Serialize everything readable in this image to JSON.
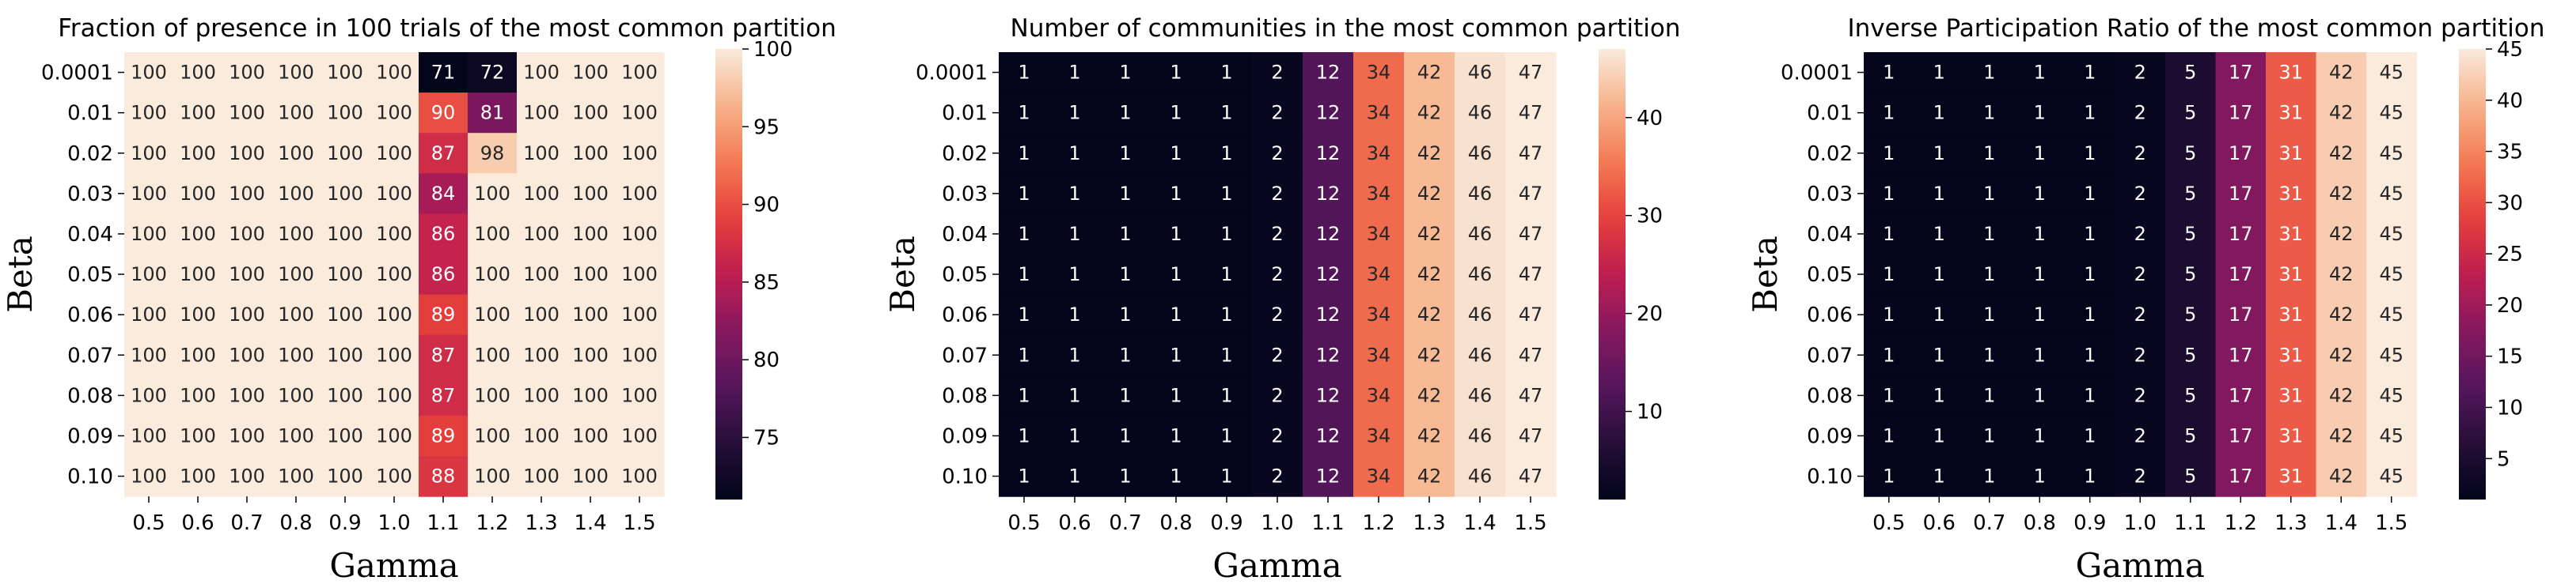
{
  "chart_data": [
    {
      "type": "heatmap",
      "title": "Fraction of presence in 100 trials of the most common partition",
      "xlabel": "Gamma",
      "ylabel": "Beta",
      "x": [
        "0.5",
        "0.6",
        "0.7",
        "0.8",
        "0.9",
        "1.0",
        "1.1",
        "1.2",
        "1.3",
        "1.4",
        "1.5"
      ],
      "y": [
        "0.0001",
        "0.01",
        "0.02",
        "0.03",
        "0.04",
        "0.05",
        "0.06",
        "0.07",
        "0.08",
        "0.09",
        "0.10"
      ],
      "values": [
        [
          100,
          100,
          100,
          100,
          100,
          100,
          71,
          72,
          100,
          100,
          100
        ],
        [
          100,
          100,
          100,
          100,
          100,
          100,
          90,
          81,
          100,
          100,
          100
        ],
        [
          100,
          100,
          100,
          100,
          100,
          100,
          87,
          98,
          100,
          100,
          100
        ],
        [
          100,
          100,
          100,
          100,
          100,
          100,
          84,
          100,
          100,
          100,
          100
        ],
        [
          100,
          100,
          100,
          100,
          100,
          100,
          86,
          100,
          100,
          100,
          100
        ],
        [
          100,
          100,
          100,
          100,
          100,
          100,
          86,
          100,
          100,
          100,
          100
        ],
        [
          100,
          100,
          100,
          100,
          100,
          100,
          89,
          100,
          100,
          100,
          100
        ],
        [
          100,
          100,
          100,
          100,
          100,
          100,
          87,
          100,
          100,
          100,
          100
        ],
        [
          100,
          100,
          100,
          100,
          100,
          100,
          87,
          100,
          100,
          100,
          100
        ],
        [
          100,
          100,
          100,
          100,
          100,
          100,
          89,
          100,
          100,
          100,
          100
        ],
        [
          100,
          100,
          100,
          100,
          100,
          100,
          88,
          100,
          100,
          100,
          100
        ]
      ],
      "colorbar": {
        "range": [
          71,
          100
        ],
        "ticks": [
          75,
          80,
          85,
          90,
          95,
          100
        ]
      },
      "colormap": "rocket"
    },
    {
      "type": "heatmap",
      "title": "Number of communities in the most common partition",
      "xlabel": "Gamma",
      "ylabel": "Beta",
      "x": [
        "0.5",
        "0.6",
        "0.7",
        "0.8",
        "0.9",
        "1.0",
        "1.1",
        "1.2",
        "1.3",
        "1.4",
        "1.5"
      ],
      "y": [
        "0.0001",
        "0.01",
        "0.02",
        "0.03",
        "0.04",
        "0.05",
        "0.06",
        "0.07",
        "0.08",
        "0.09",
        "0.10"
      ],
      "values": [
        [
          1,
          1,
          1,
          1,
          1,
          2,
          12,
          34,
          42,
          46,
          47
        ],
        [
          1,
          1,
          1,
          1,
          1,
          2,
          12,
          34,
          42,
          46,
          47
        ],
        [
          1,
          1,
          1,
          1,
          1,
          2,
          12,
          34,
          42,
          46,
          47
        ],
        [
          1,
          1,
          1,
          1,
          1,
          2,
          12,
          34,
          42,
          46,
          47
        ],
        [
          1,
          1,
          1,
          1,
          1,
          2,
          12,
          34,
          42,
          46,
          47
        ],
        [
          1,
          1,
          1,
          1,
          1,
          2,
          12,
          34,
          42,
          46,
          47
        ],
        [
          1,
          1,
          1,
          1,
          1,
          2,
          12,
          34,
          42,
          46,
          47
        ],
        [
          1,
          1,
          1,
          1,
          1,
          2,
          12,
          34,
          42,
          46,
          47
        ],
        [
          1,
          1,
          1,
          1,
          1,
          2,
          12,
          34,
          42,
          46,
          47
        ],
        [
          1,
          1,
          1,
          1,
          1,
          2,
          12,
          34,
          42,
          46,
          47
        ],
        [
          1,
          1,
          1,
          1,
          1,
          2,
          12,
          34,
          42,
          46,
          47
        ]
      ],
      "colorbar": {
        "range": [
          1,
          47
        ],
        "ticks": [
          10,
          20,
          30,
          40
        ]
      },
      "colormap": "rocket"
    },
    {
      "type": "heatmap",
      "title": "Inverse Participation Ratio of the most common partition",
      "xlabel": "Gamma",
      "ylabel": "Beta",
      "x": [
        "0.5",
        "0.6",
        "0.7",
        "0.8",
        "0.9",
        "1.0",
        "1.1",
        "1.2",
        "1.3",
        "1.4",
        "1.5"
      ],
      "y": [
        "0.0001",
        "0.01",
        "0.02",
        "0.03",
        "0.04",
        "0.05",
        "0.06",
        "0.07",
        "0.08",
        "0.09",
        "0.10"
      ],
      "values": [
        [
          1,
          1,
          1,
          1,
          1,
          2,
          5,
          17,
          31,
          42,
          45
        ],
        [
          1,
          1,
          1,
          1,
          1,
          2,
          5,
          17,
          31,
          42,
          45
        ],
        [
          1,
          1,
          1,
          1,
          1,
          2,
          5,
          17,
          31,
          42,
          45
        ],
        [
          1,
          1,
          1,
          1,
          1,
          2,
          5,
          17,
          31,
          42,
          45
        ],
        [
          1,
          1,
          1,
          1,
          1,
          2,
          5,
          17,
          31,
          42,
          45
        ],
        [
          1,
          1,
          1,
          1,
          1,
          2,
          5,
          17,
          31,
          42,
          45
        ],
        [
          1,
          1,
          1,
          1,
          1,
          2,
          5,
          17,
          31,
          42,
          45
        ],
        [
          1,
          1,
          1,
          1,
          1,
          2,
          5,
          17,
          31,
          42,
          45
        ],
        [
          1,
          1,
          1,
          1,
          1,
          2,
          5,
          17,
          31,
          42,
          45
        ],
        [
          1,
          1,
          1,
          1,
          1,
          2,
          5,
          17,
          31,
          42,
          45
        ],
        [
          1,
          1,
          1,
          1,
          1,
          2,
          5,
          17,
          31,
          42,
          45
        ]
      ],
      "colorbar": {
        "range": [
          1,
          45
        ],
        "ticks": [
          5,
          10,
          15,
          20,
          25,
          30,
          35,
          40,
          45
        ]
      },
      "colormap": "rocket"
    }
  ]
}
